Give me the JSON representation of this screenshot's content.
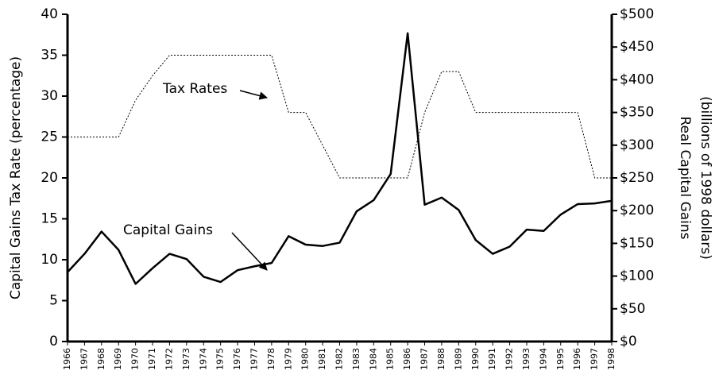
{
  "chart_data": {
    "type": "line",
    "categories": [
      "1966",
      "1967",
      "1968",
      "1969",
      "1970",
      "1971",
      "1972",
      "1973",
      "1974",
      "1975",
      "1976",
      "1977",
      "1978",
      "1979",
      "1980",
      "1981",
      "1982",
      "1983",
      "1984",
      "1985",
      "1986",
      "1987",
      "1988",
      "1989",
      "1990",
      "1991",
      "1992",
      "1993",
      "1994",
      "1995",
      "1996",
      "1997",
      "1998"
    ],
    "series": [
      {
        "name": "Tax Rates",
        "color": "#000000",
        "style": "dotted",
        "axis": "y",
        "values": [
          25,
          25,
          25,
          25,
          29.5,
          32.5,
          35,
          35,
          35,
          35,
          35,
          35,
          35,
          28,
          28,
          24,
          20,
          20,
          20,
          20,
          20,
          28,
          33,
          33,
          28,
          28,
          28,
          28,
          28,
          28,
          28,
          20,
          20
        ]
      },
      {
        "name": "Capital Gains",
        "color": "#000000",
        "style": "solid",
        "axis": "y2",
        "values": [
          106,
          134,
          168,
          140,
          88,
          112,
          134,
          126,
          99,
          91,
          109,
          115,
          120,
          161,
          148,
          146,
          151,
          199,
          216,
          256,
          471,
          209,
          220,
          201,
          155,
          134,
          145,
          171,
          169,
          194,
          210,
          211,
          215
        ]
      }
    ],
    "ylabel": "Capital Gains Tax Rate (percentage)",
    "y2label": [
      "Real Capital Gains",
      "(billions of 1998 dollars)"
    ],
    "ylim": [
      0,
      40
    ],
    "yticks": [
      0,
      5,
      10,
      15,
      20,
      25,
      30,
      35,
      40
    ],
    "y2lim": [
      0,
      500
    ],
    "y2ticks": [
      {
        "value": 0,
        "label": "$0"
      },
      {
        "value": 50,
        "label": "$50"
      },
      {
        "value": 100,
        "label": "$100"
      },
      {
        "value": 150,
        "label": "$150"
      },
      {
        "value": 200,
        "label": "$200"
      },
      {
        "value": 250,
        "label": "$250"
      },
      {
        "value": 300,
        "label": "$300"
      },
      {
        "value": 350,
        "label": "$350"
      },
      {
        "value": 400,
        "label": "$400"
      },
      {
        "value": 450,
        "label": "$450"
      },
      {
        "value": 500,
        "label": "$500"
      }
    ],
    "grid": false
  }
}
